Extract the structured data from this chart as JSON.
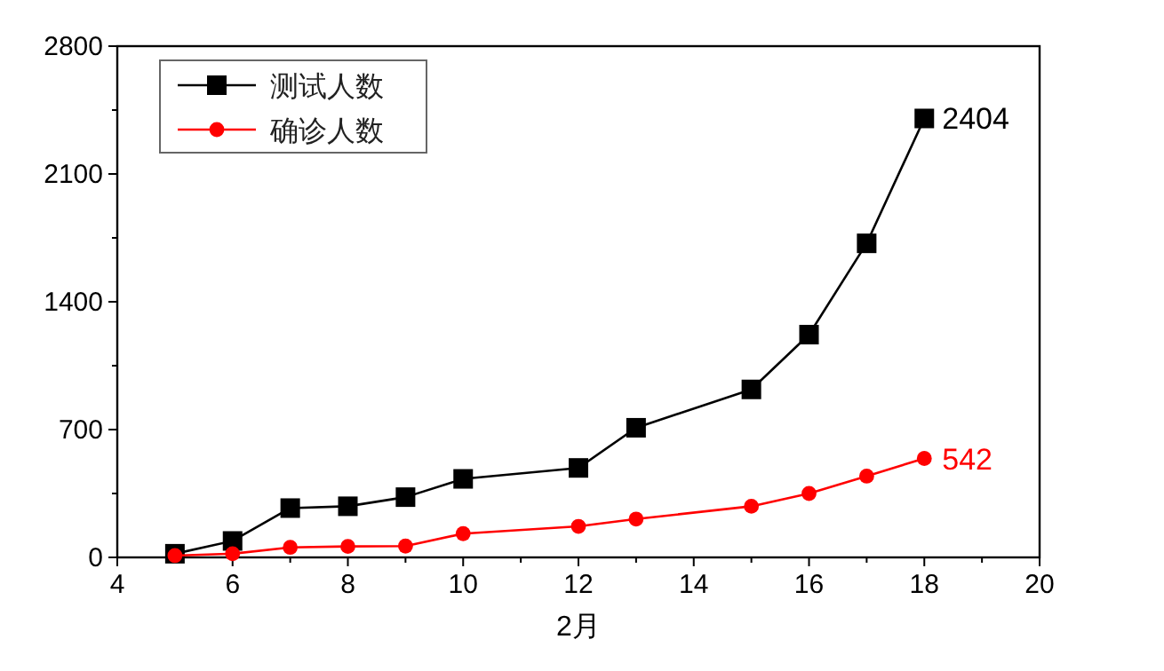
{
  "chart_data": {
    "type": "line",
    "xlabel": "2月",
    "x": [
      5,
      6,
      7,
      8,
      9,
      10,
      12,
      13,
      15,
      16,
      17,
      18
    ],
    "series": [
      {
        "name": "测试人数",
        "color": "#000000",
        "marker": "square",
        "values": [
          20,
          90,
          270,
          280,
          330,
          430,
          490,
          710,
          920,
          1220,
          1720,
          2404
        ]
      },
      {
        "name": "确诊人数",
        "color": "#ff0000",
        "marker": "circle",
        "values": [
          10,
          20,
          55,
          60,
          62,
          130,
          170,
          210,
          280,
          350,
          445,
          542
        ]
      }
    ],
    "annotations": [
      {
        "text": "2404",
        "x": 18,
        "y": 2404
      },
      {
        "text": "542",
        "x": 18,
        "y": 542
      }
    ],
    "xlim": [
      4,
      20
    ],
    "xticks": [
      4,
      6,
      8,
      10,
      12,
      14,
      16,
      18,
      20
    ],
    "ylim": [
      0,
      2800
    ],
    "yticks": [
      0,
      700,
      1400,
      2100,
      2800
    ],
    "legend": "top left",
    "grid": false
  }
}
